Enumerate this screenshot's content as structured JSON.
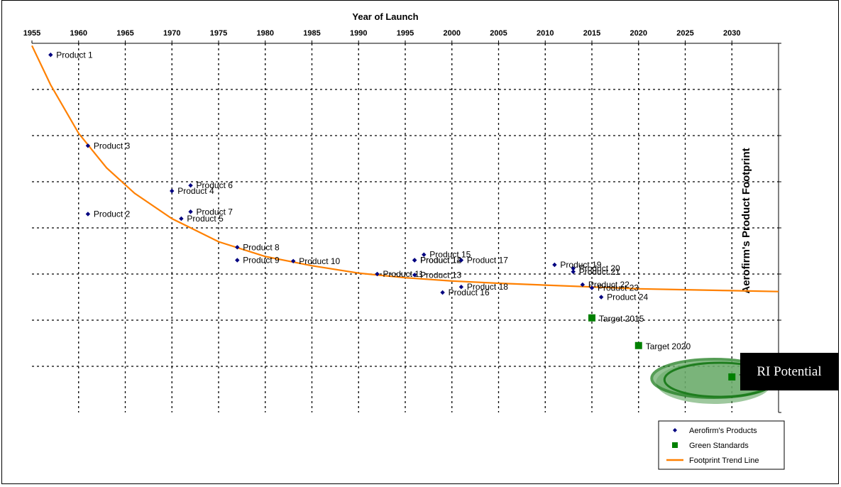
{
  "chart_data": {
    "type": "scatter",
    "xlabel": "Year of Launch",
    "ylabel": "Aerofirm's Product Footprint",
    "x_ticks": [
      1955,
      1960,
      1965,
      1970,
      1975,
      1980,
      1985,
      1990,
      1995,
      2000,
      2005,
      2010,
      2015,
      2020,
      2025,
      2030
    ],
    "xlim": [
      1955,
      2035
    ],
    "ylim": [
      0,
      8
    ],
    "grid": true,
    "legend_position": "bottom-right",
    "series": [
      {
        "name": "Aerofirm's Products",
        "marker": "diamond",
        "color": "#000080",
        "points": [
          {
            "label": "Product 1",
            "x": 1957.0,
            "y": 7.75
          },
          {
            "label": "Product 2",
            "x": 1961.0,
            "y": 4.3
          },
          {
            "label": "Product 3",
            "x": 1961.0,
            "y": 5.78
          },
          {
            "label": "Product 4",
            "x": 1970.0,
            "y": 4.8
          },
          {
            "label": "Product 5",
            "x": 1971.0,
            "y": 4.2
          },
          {
            "label": "Product 6",
            "x": 1972.0,
            "y": 4.92
          },
          {
            "label": "Product 7",
            "x": 1972.0,
            "y": 4.35
          },
          {
            "label": "Product 8",
            "x": 1977.0,
            "y": 3.58
          },
          {
            "label": "Product 9",
            "x": 1977.0,
            "y": 3.3
          },
          {
            "label": "Product 10",
            "x": 1983.0,
            "y": 3.28
          },
          {
            "label": "Product 11",
            "x": 1992.0,
            "y": 3.0
          },
          {
            "label": "Product 12",
            "x": 1996.0,
            "y": 3.3
          },
          {
            "label": "Product 13",
            "x": 1996.0,
            "y": 2.98
          },
          {
            "label": "Product 14",
            "x": 1996.0,
            "y": 3.3
          },
          {
            "label": "Product 15",
            "x": 1997.0,
            "y": 3.42
          },
          {
            "label": "Product 16",
            "x": 1999.0,
            "y": 2.6
          },
          {
            "label": "Product 17",
            "x": 2001.0,
            "y": 3.3
          },
          {
            "label": "Product 18",
            "x": 2001.0,
            "y": 2.72
          },
          {
            "label": "Product 19",
            "x": 2011.0,
            "y": 3.2
          },
          {
            "label": "Product 20",
            "x": 2013.0,
            "y": 3.12
          },
          {
            "label": "Product 21",
            "x": 2013.0,
            "y": 3.05
          },
          {
            "label": "Product 22",
            "x": 2014.0,
            "y": 2.77
          },
          {
            "label": "Product 23",
            "x": 2015.0,
            "y": 2.7
          },
          {
            "label": "Product 24",
            "x": 2016.0,
            "y": 2.5
          }
        ]
      },
      {
        "name": "Green Standards",
        "marker": "square",
        "color": "#008000",
        "points": [
          {
            "label": "Target 2015",
            "x": 2015.0,
            "y": 2.05
          },
          {
            "label": "Target 2020",
            "x": 2020.0,
            "y": 1.45
          },
          {
            "label": "Target 2030",
            "x": 2030.0,
            "y": 0.77
          }
        ]
      },
      {
        "name": "Footprint Trend Line",
        "type": "line",
        "color": "#ff8000",
        "x": [
          1955,
          1957,
          1960,
          1963,
          1966,
          1970,
          1975,
          1980,
          1985,
          1990,
          1995,
          2000,
          2005,
          2010,
          2015,
          2020,
          2025,
          2030,
          2035
        ],
        "y": [
          7.95,
          7.1,
          6.05,
          5.3,
          4.75,
          4.2,
          3.7,
          3.38,
          3.18,
          3.02,
          2.92,
          2.85,
          2.8,
          2.76,
          2.72,
          2.68,
          2.66,
          2.64,
          2.62
        ]
      }
    ],
    "annotations": [
      {
        "text": "RI Potential",
        "style": "black box",
        "highlight": "green ellipse around Target 2030"
      }
    ]
  },
  "legend": [
    {
      "label": "Aerofirm's Products",
      "marker": "diamond",
      "color": "#000080"
    },
    {
      "label": "Green Standards",
      "marker": "square",
      "color": "#008000"
    },
    {
      "label": "Footprint Trend Line",
      "marker": "line",
      "color": "#ff8000"
    }
  ],
  "callout": {
    "text": "RI Potential"
  }
}
